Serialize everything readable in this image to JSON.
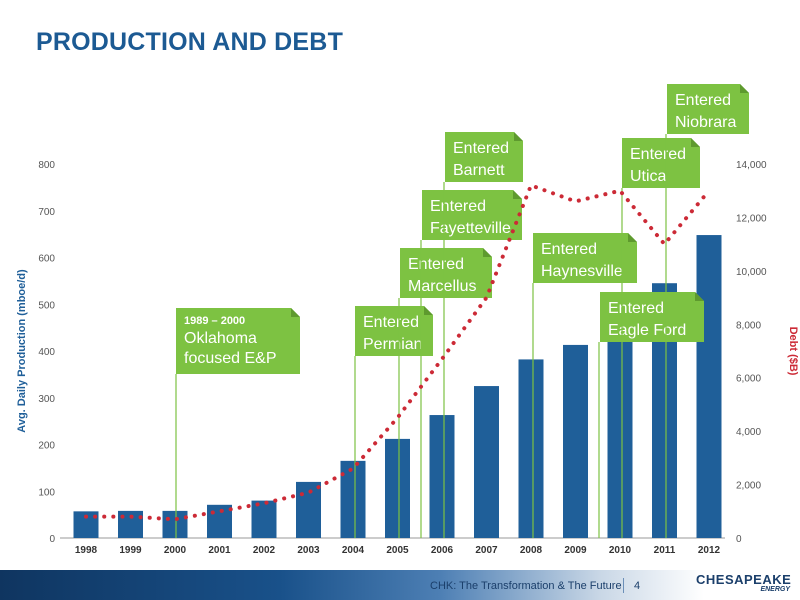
{
  "slide": {
    "title": "PRODUCTION AND DEBT",
    "footer_text": "CHK: The Transformation & The Future",
    "page_number": "4",
    "logo_text": "CHESAPEAKE",
    "logo_sub": "ENERGY"
  },
  "colors": {
    "bar": "#1f5f99",
    "line": "#cc2a36",
    "callout": "#7dc242",
    "title": "#1c5a93"
  },
  "chart_data": {
    "type": "bar",
    "categories": [
      "1998",
      "1999",
      "2000",
      "2001",
      "2002",
      "2003",
      "2004",
      "2005",
      "2006",
      "2007",
      "2008",
      "2009",
      "2010",
      "2011",
      "2012"
    ],
    "ylabel": "Avg. Daily Production (mboe/d)",
    "y2label": "Debt ($B)",
    "ylim": [
      0,
      800
    ],
    "y2lim": [
      0,
      14000
    ],
    "yticks": [
      "0",
      "100",
      "200",
      "300",
      "400",
      "500",
      "600",
      "700",
      "800"
    ],
    "y2ticks": [
      "0",
      "2,000",
      "4,000",
      "6,000",
      "8,000",
      "10,000",
      "12,000",
      "14,000"
    ],
    "series": [
      {
        "name": "Avg. Daily Production (mboe/d)",
        "type": "bar",
        "axis": "left",
        "values": [
          57,
          58,
          58,
          71,
          80,
          120,
          165,
          212,
          263,
          325,
          382,
          413,
          435,
          545,
          648
        ]
      },
      {
        "name": "Debt ($B)",
        "type": "line",
        "axis": "right",
        "values": [
          800,
          800,
          700,
          1000,
          1300,
          1700,
          2600,
          4500,
          6700,
          9000,
          13200,
          12600,
          13000,
          11000,
          13000
        ]
      }
    ],
    "annotations": [
      {
        "year": "2000",
        "line1": "1989 – 2000",
        "line2": "Oklahoma",
        "line3": "focused E&P"
      },
      {
        "year": "2004",
        "line1": "Entered",
        "line2": "Permian"
      },
      {
        "year": "2005",
        "line1": "Entered",
        "line2": "Marcellus"
      },
      {
        "year": "2005.5",
        "line1": "Entered",
        "line2": "Fayetteville"
      },
      {
        "year": "2006",
        "line1": "Entered",
        "line2": "Barnett"
      },
      {
        "year": "2008",
        "line1": "Entered",
        "line2": "Haynesville"
      },
      {
        "year": "2010",
        "line1": "Entered",
        "line2": "Eagle Ford"
      },
      {
        "year": "2010.5",
        "line1": "Entered",
        "line2": "Utica"
      },
      {
        "year": "2011",
        "line1": "Entered",
        "line2": "Niobrara"
      }
    ]
  }
}
